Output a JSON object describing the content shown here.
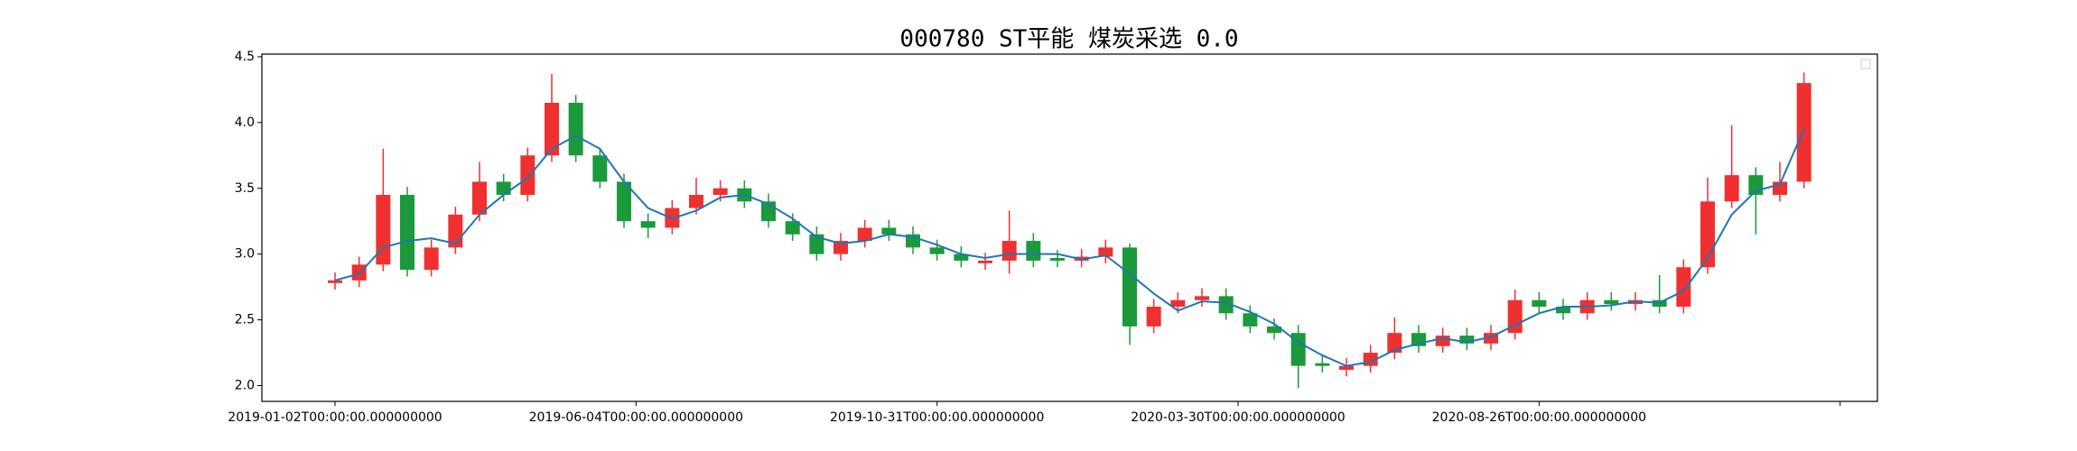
{
  "chart_data": {
    "type": "candlestick",
    "title": "000780 ST平能 煤炭采选 0.0",
    "x": [
      0,
      8,
      16,
      24,
      32,
      40,
      48,
      56,
      64,
      72,
      80,
      88,
      96,
      104,
      112,
      120,
      128,
      136,
      144,
      152,
      160,
      168,
      176,
      184,
      192,
      200,
      208,
      216,
      224,
      232,
      240,
      248,
      256,
      264,
      272,
      280,
      288,
      296,
      304,
      312,
      320,
      328,
      336,
      344,
      352,
      360,
      368,
      376,
      384,
      392,
      400,
      408,
      416,
      424,
      432,
      440,
      448,
      456,
      464,
      472,
      480,
      488
    ],
    "open": [
      2.78,
      2.8,
      2.92,
      3.45,
      2.88,
      3.05,
      3.3,
      3.55,
      3.45,
      3.75,
      4.15,
      3.75,
      3.55,
      3.25,
      3.2,
      3.35,
      3.45,
      3.5,
      3.4,
      3.25,
      3.15,
      3.0,
      3.1,
      3.2,
      3.15,
      3.05,
      3.0,
      2.93,
      2.95,
      3.1,
      2.97,
      2.95,
      2.98,
      3.05,
      2.45,
      2.6,
      2.65,
      2.68,
      2.55,
      2.45,
      2.4,
      2.17,
      2.12,
      2.15,
      2.25,
      2.4,
      2.3,
      2.38,
      2.32,
      2.4,
      2.65,
      2.6,
      2.55,
      2.65,
      2.62,
      2.65,
      2.6,
      2.9,
      3.4,
      3.6,
      3.45,
      3.55
    ],
    "high": [
      2.86,
      2.98,
      3.8,
      3.51,
      3.11,
      3.36,
      3.7,
      3.61,
      3.81,
      4.37,
      4.21,
      3.81,
      3.61,
      3.31,
      3.41,
      3.58,
      3.56,
      3.56,
      3.46,
      3.31,
      3.21,
      3.16,
      3.26,
      3.26,
      3.21,
      3.11,
      3.06,
      3.01,
      3.33,
      3.16,
      3.03,
      3.04,
      3.11,
      3.08,
      2.66,
      2.71,
      2.74,
      2.74,
      2.61,
      2.51,
      2.46,
      2.23,
      2.21,
      2.31,
      2.52,
      2.46,
      2.44,
      2.44,
      2.46,
      2.73,
      2.71,
      2.66,
      2.71,
      2.71,
      2.71,
      2.84,
      2.96,
      3.58,
      3.98,
      3.66,
      3.7,
      4.38
    ],
    "low": [
      2.73,
      2.75,
      2.87,
      2.83,
      2.83,
      3.0,
      3.25,
      3.4,
      3.4,
      3.7,
      3.7,
      3.5,
      3.2,
      3.12,
      3.15,
      3.3,
      3.4,
      3.35,
      3.2,
      3.1,
      2.95,
      2.95,
      3.05,
      3.1,
      3.0,
      2.95,
      2.9,
      2.88,
      2.85,
      2.9,
      2.9,
      2.9,
      2.93,
      2.31,
      2.4,
      2.55,
      2.6,
      2.5,
      2.4,
      2.35,
      1.98,
      2.1,
      2.07,
      2.1,
      2.2,
      2.25,
      2.25,
      2.27,
      2.27,
      2.35,
      2.55,
      2.5,
      2.5,
      2.57,
      2.57,
      2.55,
      2.55,
      2.85,
      3.35,
      3.15,
      3.4,
      3.5
    ],
    "close": [
      2.8,
      2.92,
      3.45,
      2.88,
      3.05,
      3.3,
      3.55,
      3.45,
      3.75,
      4.15,
      3.75,
      3.55,
      3.25,
      3.2,
      3.35,
      3.45,
      3.5,
      3.4,
      3.25,
      3.15,
      3.0,
      3.1,
      3.2,
      3.15,
      3.05,
      3.0,
      2.95,
      2.95,
      3.1,
      2.95,
      2.95,
      2.98,
      3.05,
      2.45,
      2.6,
      2.65,
      2.68,
      2.55,
      2.45,
      2.4,
      2.15,
      2.15,
      2.15,
      2.25,
      2.4,
      2.3,
      2.38,
      2.32,
      2.4,
      2.65,
      2.6,
      2.55,
      2.65,
      2.62,
      2.65,
      2.6,
      2.9,
      3.4,
      3.6,
      3.45,
      3.55,
      4.3
    ],
    "up_color": "#f03030",
    "down_color": "#1a9a3a",
    "line": {
      "color": "#1f77b4",
      "values": [
        2.8,
        2.85,
        3.05,
        3.1,
        3.12,
        3.08,
        3.3,
        3.45,
        3.58,
        3.8,
        3.9,
        3.8,
        3.55,
        3.35,
        3.27,
        3.33,
        3.43,
        3.45,
        3.38,
        3.27,
        3.13,
        3.08,
        3.1,
        3.15,
        3.13,
        3.07,
        3.0,
        2.97,
        3.0,
        3.0,
        3.0,
        2.96,
        2.99,
        2.85,
        2.7,
        2.57,
        2.64,
        2.63,
        2.56,
        2.47,
        2.33,
        2.23,
        2.15,
        2.18,
        2.27,
        2.32,
        2.36,
        2.33,
        2.37,
        2.46,
        2.55,
        2.6,
        2.6,
        2.61,
        2.64,
        2.63,
        2.72,
        2.97,
        3.3,
        3.48,
        3.53,
        3.95
      ]
    },
    "xlim": [
      -24.3,
      512.4
    ],
    "xticks": [
      {
        "value": 0,
        "label": "2019-01-02T00:00:00.000000000"
      },
      {
        "value": 100,
        "label": "2019-06-04T00:00:00.000000000"
      },
      {
        "value": 200,
        "label": "2019-10-31T00:00:00.000000000"
      },
      {
        "value": 300,
        "label": "2020-03-30T00:00:00.000000000"
      },
      {
        "value": 400,
        "label": "2020-08-26T00:00:00.000000000"
      },
      {
        "value": 500,
        "label": null
      }
    ],
    "ylim": [
      1.88,
      4.52
    ],
    "yticks": [
      {
        "value": 2,
        "label": "2.0"
      },
      2.5,
      {
        "value": 3,
        "label": "3.0"
      },
      3.5,
      {
        "value": 4,
        "label": "4.0"
      },
      4.5
    ]
  }
}
